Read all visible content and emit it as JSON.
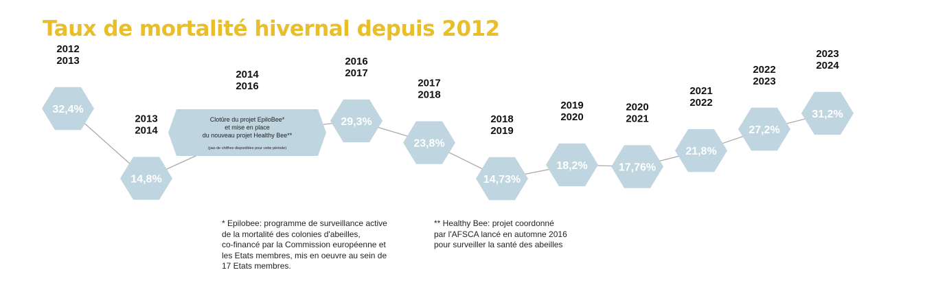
{
  "title": "Taux de mortalité hivernal depuis 2012",
  "colors": {
    "title": "#e8bf2a",
    "hexagon": "#bfd5e0",
    "line": "#a9a9a9",
    "value_text": "#ffffff",
    "label_text": "#111111"
  },
  "chart_data": {
    "type": "line",
    "title": "Taux de mortalité hivernal depuis 2012",
    "xlabel": "",
    "ylabel": "",
    "grid": false,
    "unit": "%",
    "points": [
      {
        "period": [
          "2012",
          "2013"
        ],
        "value": 32.4,
        "label": "32,4%"
      },
      {
        "period": [
          "2013",
          "2014"
        ],
        "value": 14.8,
        "label": "14,8%"
      },
      {
        "period": [
          "2014",
          "2016"
        ],
        "value": null,
        "label": "",
        "note": [
          "Clotûre du projet EpiloBee*",
          "et mise en place",
          "du nouveau projet Healthy Bee**"
        ],
        "small_note": "(pas de chiffres disponibles pour cette période)"
      },
      {
        "period": [
          "2016",
          "2017"
        ],
        "value": 29.3,
        "label": "29,3%"
      },
      {
        "period": [
          "2017",
          "2018"
        ],
        "value": 23.8,
        "label": "23,8%"
      },
      {
        "period": [
          "2018",
          "2019"
        ],
        "value": 14.73,
        "label": "14,73%"
      },
      {
        "period": [
          "2019",
          "2020"
        ],
        "value": 18.2,
        "label": "18,2%"
      },
      {
        "period": [
          "2020",
          "2021"
        ],
        "value": 17.76,
        "label": "17,76%"
      },
      {
        "period": [
          "2021",
          "2022"
        ],
        "value": 21.8,
        "label": "21,8%"
      },
      {
        "period": [
          "2022",
          "2023"
        ],
        "value": 27.2,
        "label": "27,2%"
      },
      {
        "period": [
          "2023",
          "2024"
        ],
        "value": 31.2,
        "label": "31,2%"
      }
    ]
  },
  "footnotes": {
    "epilobee": [
      "* Epilobee: programme de surveillance active",
      "de la mortalité des colonies d'abeilles,",
      "co-financé par la Commission européenne et",
      "les Etats membres, mis en oeuvre au sein de",
      "17 Etats membres."
    ],
    "healthy_bee": [
      "** Healthy Bee: projet coordonné",
      "par l'AFSCA lancé en automne 2016",
      "pour surveiller la santé des abeilles"
    ]
  }
}
